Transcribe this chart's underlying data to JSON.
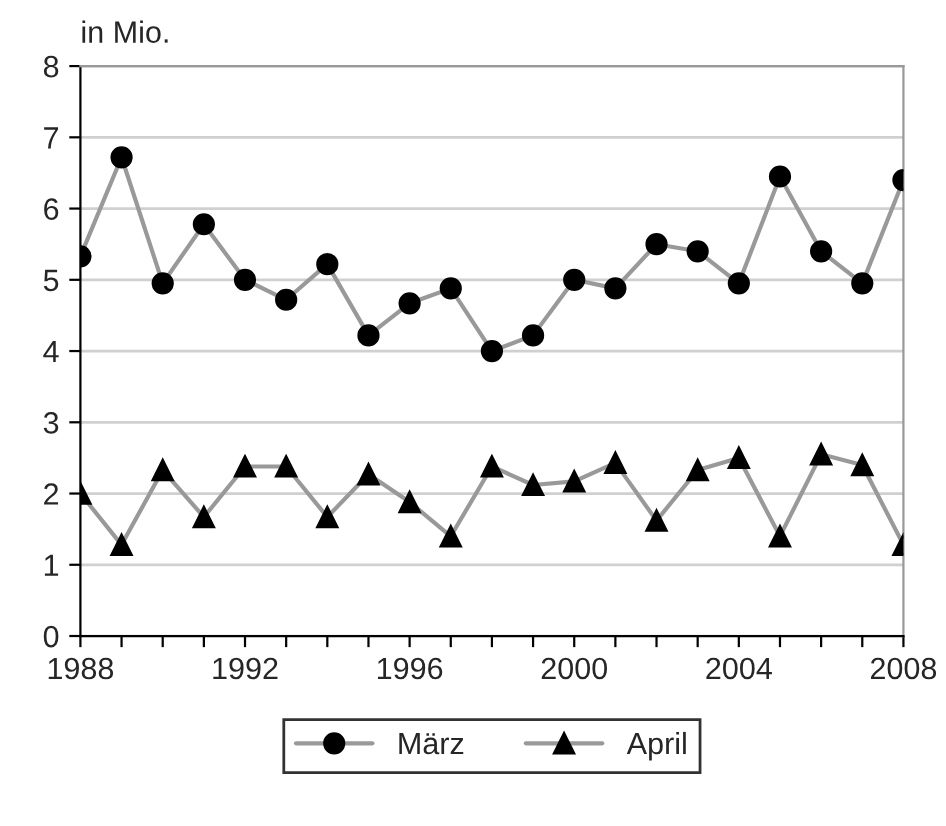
{
  "chart_data": {
    "type": "line",
    "ylabel": "in Mio.",
    "x": [
      1988,
      1989,
      1990,
      1991,
      1992,
      1993,
      1994,
      1995,
      1996,
      1997,
      1998,
      1999,
      2000,
      2001,
      2002,
      2003,
      2004,
      2005,
      2006,
      2007,
      2008
    ],
    "series": [
      {
        "name": "März",
        "color": "#000000",
        "marker": "circle",
        "values": [
          5.33,
          6.72,
          4.95,
          5.78,
          5.0,
          4.72,
          5.22,
          4.22,
          4.67,
          4.88,
          4.0,
          4.22,
          5.0,
          4.88,
          5.5,
          5.4,
          4.95,
          6.45,
          5.4,
          4.95,
          6.4
        ]
      },
      {
        "name": "April",
        "color": "#000000",
        "marker": "triangle",
        "values": [
          2.0,
          1.28,
          2.33,
          1.67,
          2.38,
          2.38,
          1.67,
          2.27,
          1.88,
          1.4,
          2.38,
          2.12,
          2.17,
          2.43,
          1.62,
          2.33,
          2.5,
          1.4,
          2.55,
          2.4,
          1.28
        ]
      }
    ],
    "xlim": [
      1988,
      2008
    ],
    "xticks": [
      1988,
      {
        "value": 1989,
        "label": null
      },
      {
        "value": 1990,
        "label": null
      },
      {
        "value": 1991,
        "label": null
      },
      1992,
      {
        "value": 1993,
        "label": null
      },
      {
        "value": 1994,
        "label": null
      },
      {
        "value": 1995,
        "label": null
      },
      1996,
      {
        "value": 1997,
        "label": null
      },
      {
        "value": 1998,
        "label": null
      },
      {
        "value": 1999,
        "label": null
      },
      2000,
      {
        "value": 2001,
        "label": null
      },
      {
        "value": 2002,
        "label": null
      },
      {
        "value": 2003,
        "label": null
      },
      2004,
      {
        "value": 2005,
        "label": null
      },
      {
        "value": 2006,
        "label": null
      },
      {
        "value": 2007,
        "label": null
      },
      2008
    ],
    "ylim": [
      0,
      8
    ],
    "yticks": [
      0,
      1,
      2,
      3,
      4,
      5,
      6,
      7,
      8
    ],
    "grid": "y",
    "legend": "bottom",
    "line_style": "solid"
  }
}
